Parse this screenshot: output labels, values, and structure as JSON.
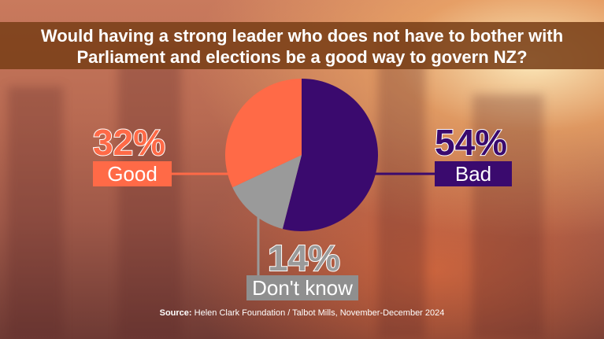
{
  "chart_data": {
    "type": "pie",
    "title": "Would having a strong leader who does not have to bother with Parliament and elections be a good way to govern NZ?",
    "slices": [
      {
        "label": "Bad",
        "value": 54,
        "display": "54%",
        "color": "#3a0a6e"
      },
      {
        "label": "Don't know",
        "value": 14,
        "display": "14%",
        "color": "#9a9a9a"
      },
      {
        "label": "Good",
        "value": 32,
        "display": "32%",
        "color": "#ff6a47"
      }
    ]
  },
  "source": {
    "prefix": "Source:",
    "text": " Helen Clark Foundation / Talbot Mills, November-December 2024"
  }
}
